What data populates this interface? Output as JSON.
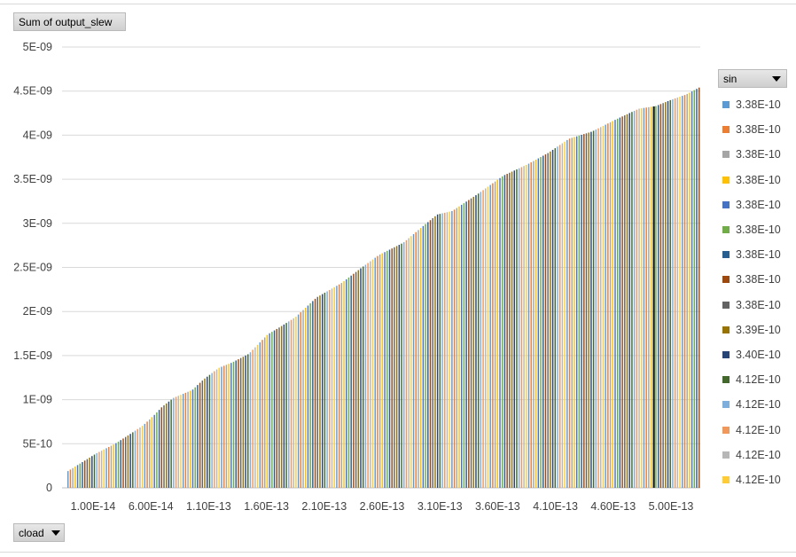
{
  "pivot": {
    "values_button": "Sum of output_slew",
    "axis_button": "cload",
    "legend_button": "sin"
  },
  "legend_items": [
    {
      "label": "3.38E-10",
      "color": "#5b9bd5"
    },
    {
      "label": "3.38E-10",
      "color": "#ed7d31"
    },
    {
      "label": "3.38E-10",
      "color": "#a5a5a5"
    },
    {
      "label": "3.38E-10",
      "color": "#ffc000"
    },
    {
      "label": "3.38E-10",
      "color": "#4472c4"
    },
    {
      "label": "3.38E-10",
      "color": "#70ad47"
    },
    {
      "label": "3.38E-10",
      "color": "#255e91"
    },
    {
      "label": "3.38E-10",
      "color": "#9e480e"
    },
    {
      "label": "3.38E-10",
      "color": "#636363"
    },
    {
      "label": "3.39E-10",
      "color": "#997300"
    },
    {
      "label": "3.40E-10",
      "color": "#264478"
    },
    {
      "label": "4.12E-10",
      "color": "#43682b"
    },
    {
      "label": "4.12E-10",
      "color": "#7cafdd"
    },
    {
      "label": "4.12E-10",
      "color": "#f1975a"
    },
    {
      "label": "4.12E-10",
      "color": "#b7b7b7"
    },
    {
      "label": "4.12E-10",
      "color": "#ffcd33"
    }
  ],
  "chart_data": {
    "type": "bar",
    "title": "",
    "xlabel": "cload",
    "ylabel": "Sum of output_slew",
    "ylim": [
      0,
      5e-09
    ],
    "y_ticks": [
      "0",
      "5E-10",
      "1E-09",
      "1.5E-09",
      "2E-09",
      "2.5E-09",
      "3E-09",
      "3.5E-09",
      "4E-09",
      "4.5E-09",
      "5E-09"
    ],
    "x_tick_labels": [
      "1.00E-14",
      "6.00E-14",
      "1.10E-13",
      "1.60E-13",
      "2.10E-13",
      "2.60E-13",
      "3.10E-13",
      "3.60E-13",
      "4.10E-13",
      "4.60E-13",
      "5.00E-13"
    ],
    "grid": true,
    "legend_position": "right",
    "category_count": 16,
    "series_count": 16,
    "highlighted_series_index": 10,
    "envelope": [
      [
        0,
        1.9e-10
      ],
      [
        1.5,
        3.9e-10
      ],
      [
        2.5,
        5e-10
      ],
      [
        3.3,
        6.1e-10
      ],
      [
        4.0,
        7.1e-10
      ],
      [
        4.6,
        8.3e-10
      ],
      [
        5.0,
        9.2e-10
      ],
      [
        5.6,
        1.02e-09
      ],
      [
        6.6,
        1.11e-09
      ],
      [
        7.2,
        1.23e-09
      ],
      [
        8.0,
        1.36e-09
      ],
      [
        8.7,
        1.42e-09
      ],
      [
        9.6,
        1.52e-09
      ],
      [
        10.6,
        1.74e-09
      ],
      [
        11.3,
        1.83e-09
      ],
      [
        12.1,
        1.94e-09
      ],
      [
        13.2,
        2.16e-09
      ],
      [
        14.5,
        2.32e-09
      ],
      [
        15.6,
        2.5e-09
      ],
      [
        16.5,
        2.64e-09
      ],
      [
        17.8,
        2.78e-09
      ],
      [
        18.8,
        2.96e-09
      ],
      [
        19.6,
        3.1e-09
      ],
      [
        20.4,
        3.14e-09
      ],
      [
        21.8,
        3.34e-09
      ],
      [
        23.1,
        3.54e-09
      ],
      [
        24.4,
        3.67e-09
      ],
      [
        25.5,
        3.8e-09
      ],
      [
        26.6,
        3.96e-09
      ],
      [
        27.8,
        4.04e-09
      ],
      [
        29.1,
        4.18e-09
      ],
      [
        30.3,
        4.3e-09
      ],
      [
        31.2,
        4.33e-09
      ],
      [
        32.0,
        4.4e-09
      ],
      [
        32.8,
        4.46e-09
      ],
      [
        33.5,
        4.54e-09
      ]
    ]
  }
}
